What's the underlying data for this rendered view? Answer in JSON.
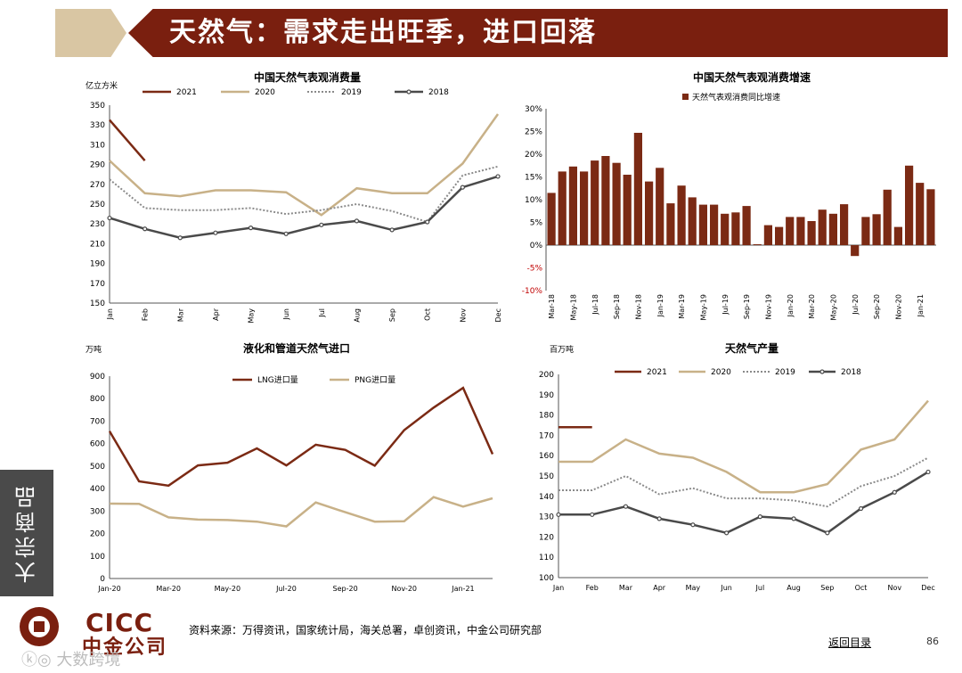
{
  "header": {
    "title": "天然气：需求走出旺季，进口回落"
  },
  "sidebar": {
    "label": "大宗商品"
  },
  "footer": {
    "logo_en": "CICC",
    "logo_cn": "中金公司",
    "source": "资料来源：万得资讯，国家统计局，海关总署，卓创资讯，中金公司研究部",
    "back_link": "返回目录",
    "page_number": "86",
    "watermark": "ⓚ◎ 大数跨境"
  },
  "colors": {
    "brand": "#7a1f0f",
    "c2021": "#7b2a14",
    "c2020": "#c8b188",
    "c2019": "#8a8a8a",
    "c2018": "#4a4a4a"
  },
  "chart_data": [
    {
      "type": "line",
      "title": "中国天然气表观消费量",
      "ylabel": "亿立方米",
      "ylim": [
        150,
        350
      ],
      "yticks": [
        150,
        170,
        190,
        210,
        230,
        250,
        270,
        290,
        310,
        330,
        350
      ],
      "categories": [
        "Jan",
        "Feb",
        "Mar",
        "Apr",
        "May",
        "Jun",
        "Jul",
        "Aug",
        "Sep",
        "Oct",
        "Nov",
        "Dec"
      ],
      "series": [
        {
          "name": "2021",
          "values": [
            335,
            294,
            null,
            null,
            null,
            null,
            null,
            null,
            null,
            null,
            null,
            null
          ]
        },
        {
          "name": "2020",
          "values": [
            294,
            261,
            258,
            264,
            264,
            262,
            239,
            266,
            261,
            261,
            291,
            341
          ]
        },
        {
          "name": "2019",
          "values": [
            275,
            246,
            244,
            244,
            246,
            240,
            244,
            250,
            243,
            232,
            279,
            288
          ]
        },
        {
          "name": "2018",
          "values": [
            236,
            225,
            216,
            221,
            226,
            220,
            229,
            233,
            224,
            232,
            267,
            278
          ]
        }
      ]
    },
    {
      "type": "bar",
      "title": "中国天然气表观消费增速",
      "legend": [
        "天然气表观消费同比增速"
      ],
      "ylim": [
        -10,
        30
      ],
      "yticks": [
        "-10%",
        "-5%",
        "0%",
        "5%",
        "10%",
        "15%",
        "20%",
        "25%",
        "30%"
      ],
      "categories": [
        "Mar-18",
        "Apr-18",
        "May-18",
        "Jun-18",
        "Jul-18",
        "Aug-18",
        "Sep-18",
        "Oct-18",
        "Nov-18",
        "Dec-18",
        "Jan-19",
        "Feb-19",
        "Mar-19",
        "Apr-19",
        "May-19",
        "Jun-19",
        "Jul-19",
        "Aug-19",
        "Sep-19",
        "Oct-19",
        "Nov-19",
        "Dec-19",
        "Jan-20",
        "Feb-20",
        "Mar-20",
        "Apr-20",
        "May-20",
        "Jun-20",
        "Jul-20",
        "Aug-20",
        "Sep-20",
        "Oct-20",
        "Nov-20",
        "Dec-20",
        "Jan-21",
        "Feb-21"
      ],
      "xticks": [
        "Mar-18",
        "May-18",
        "Jul-18",
        "Sep-18",
        "Nov-18",
        "Jan-19",
        "Mar-19",
        "May-19",
        "Jul-19",
        "Sep-19",
        "Nov-19",
        "Jan-20",
        "Mar-20",
        "May-20",
        "Jul-20",
        "Sep-20",
        "Nov-20",
        "Jan-21"
      ],
      "values": [
        11.5,
        16.2,
        17.3,
        16.2,
        18.6,
        19.6,
        18.1,
        15.5,
        24.7,
        14.0,
        17.0,
        9.2,
        13.1,
        10.5,
        8.9,
        8.9,
        6.9,
        7.2,
        8.6,
        0.2,
        4.4,
        4.0,
        6.2,
        6.2,
        5.3,
        7.8,
        6.9,
        9.0,
        -2.4,
        6.2,
        6.8,
        12.2,
        4.0,
        17.5,
        13.7,
        12.3
      ]
    },
    {
      "type": "line",
      "title": "液化和管道天然气进口",
      "ylabel": "万吨",
      "ylim": [
        0,
        900
      ],
      "yticks": [
        0,
        100,
        200,
        300,
        400,
        500,
        600,
        700,
        800,
        900
      ],
      "categories": [
        "Jan-20",
        "Feb-20",
        "Mar-20",
        "Apr-20",
        "May-20",
        "Jun-20",
        "Jul-20",
        "Aug-20",
        "Sep-20",
        "Oct-20",
        "Nov-20",
        "Dec-20",
        "Jan-21",
        "Feb-21"
      ],
      "xticks": [
        "Jan-20",
        "Mar-20",
        "May-20",
        "Jul-20",
        "Sep-20",
        "Nov-20",
        "Jan-21"
      ],
      "series": [
        {
          "name": "LNG进口量",
          "values": [
            655,
            432,
            413,
            503,
            515,
            579,
            503,
            595,
            572,
            502,
            660,
            760,
            848,
            553
          ]
        },
        {
          "name": "PNG进口量",
          "values": [
            333,
            332,
            272,
            262,
            260,
            253,
            232,
            338,
            295,
            253,
            255,
            362,
            320,
            357
          ]
        }
      ]
    },
    {
      "type": "line",
      "title": "天然气产量",
      "ylabel": "百万吨",
      "ylim": [
        100,
        200
      ],
      "yticks": [
        100,
        110,
        120,
        130,
        140,
        150,
        160,
        170,
        180,
        190,
        200
      ],
      "categories": [
        "Jan",
        "Feb",
        "Mar",
        "Apr",
        "May",
        "Jun",
        "Jul",
        "Aug",
        "Sep",
        "Oct",
        "Nov",
        "Dec"
      ],
      "series": [
        {
          "name": "2021",
          "values": [
            174,
            174,
            null,
            null,
            null,
            null,
            null,
            null,
            null,
            null,
            null,
            null
          ]
        },
        {
          "name": "2020",
          "values": [
            157,
            157,
            168,
            161,
            159,
            152,
            142,
            142,
            146,
            163,
            168,
            187
          ]
        },
        {
          "name": "2019",
          "values": [
            143,
            143,
            150,
            141,
            144,
            139,
            139,
            138,
            135,
            145,
            150,
            159
          ]
        },
        {
          "name": "2018",
          "values": [
            131,
            131,
            135,
            129,
            126,
            122,
            130,
            129,
            122,
            134,
            142,
            152
          ]
        }
      ]
    }
  ]
}
